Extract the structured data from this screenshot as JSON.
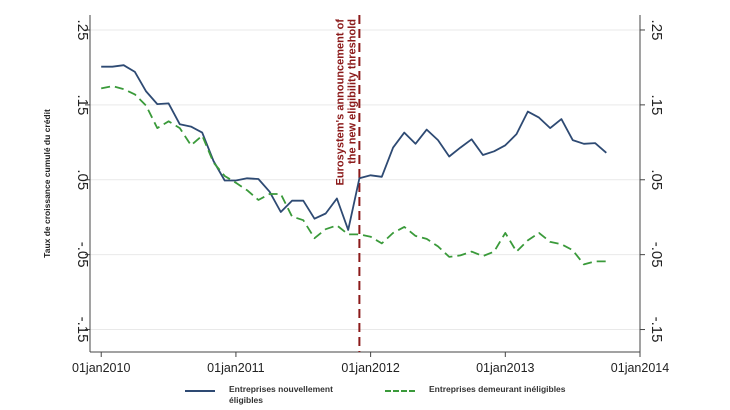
{
  "chart_data": {
    "type": "line",
    "ylabel": "Taux de croissance cumulé du crédit",
    "xlabel": "",
    "x_ticks": [
      "01jan2010",
      "01jan2011",
      "01jan2012",
      "01jan2013",
      "01jan2014"
    ],
    "y_ticks": [
      "-.15",
      "-.05",
      ".05",
      ".15",
      ".25"
    ],
    "ylim": [
      -0.18,
      0.27
    ],
    "xlim": [
      "2009-12",
      "2014-01"
    ],
    "grid": true,
    "legend_position": "bottom",
    "annotation": {
      "date": "2011-12",
      "lines": [
        "Eurosystem's announcement of",
        "the new eligibility threshold"
      ],
      "color": "#8b1a1a"
    },
    "series": [
      {
        "name": "Entreprises nouvellement éligibles",
        "color": "#2e4a73",
        "style": "solid",
        "points": [
          [
            "2010-01",
            0.201
          ],
          [
            "2010-02",
            0.201
          ],
          [
            "2010-03",
            0.203
          ],
          [
            "2010-04",
            0.194
          ],
          [
            "2010-05",
            0.168
          ],
          [
            "2010-06",
            0.151
          ],
          [
            "2010-07",
            0.152
          ],
          [
            "2010-08",
            0.124
          ],
          [
            "2010-09",
            0.121
          ],
          [
            "2010-10",
            0.113
          ],
          [
            "2010-11",
            0.075
          ],
          [
            "2010-12",
            0.049
          ],
          [
            "2011-01",
            0.049
          ],
          [
            "2011-02",
            0.052
          ],
          [
            "2011-03",
            0.051
          ],
          [
            "2011-04",
            0.034
          ],
          [
            "2011-05",
            0.007
          ],
          [
            "2011-06",
            0.022
          ],
          [
            "2011-07",
            0.022
          ],
          [
            "2011-08",
            -0.002
          ],
          [
            "2011-09",
            0.005
          ],
          [
            "2011-10",
            0.025
          ],
          [
            "2011-11",
            -0.017
          ],
          [
            "2011-12",
            0.052
          ],
          [
            "2012-01",
            0.056
          ],
          [
            "2012-02",
            0.054
          ],
          [
            "2012-03",
            0.093
          ],
          [
            "2012-04",
            0.113
          ],
          [
            "2012-05",
            0.098
          ],
          [
            "2012-06",
            0.117
          ],
          [
            "2012-07",
            0.103
          ],
          [
            "2012-08",
            0.081
          ],
          [
            "2012-09",
            0.093
          ],
          [
            "2012-10",
            0.104
          ],
          [
            "2012-11",
            0.083
          ],
          [
            "2012-12",
            0.088
          ],
          [
            "2013-01",
            0.096
          ],
          [
            "2013-02",
            0.111
          ],
          [
            "2013-03",
            0.141
          ],
          [
            "2013-04",
            0.133
          ],
          [
            "2013-05",
            0.119
          ],
          [
            "2013-06",
            0.131
          ],
          [
            "2013-07",
            0.103
          ],
          [
            "2013-08",
            0.098
          ],
          [
            "2013-09",
            0.099
          ],
          [
            "2013-10",
            0.086
          ]
        ]
      },
      {
        "name": "Entreprises demeurant inéligibles",
        "color": "#3a9a3a",
        "style": "dashed",
        "points": [
          [
            "2010-01",
            0.172
          ],
          [
            "2010-02",
            0.175
          ],
          [
            "2010-03",
            0.171
          ],
          [
            "2010-04",
            0.164
          ],
          [
            "2010-05",
            0.149
          ],
          [
            "2010-06",
            0.119
          ],
          [
            "2010-07",
            0.128
          ],
          [
            "2010-08",
            0.119
          ],
          [
            "2010-09",
            0.096
          ],
          [
            "2010-10",
            0.109
          ],
          [
            "2010-11",
            0.073
          ],
          [
            "2010-12",
            0.055
          ],
          [
            "2011-01",
            0.046
          ],
          [
            "2011-02",
            0.036
          ],
          [
            "2011-03",
            0.023
          ],
          [
            "2011-04",
            0.031
          ],
          [
            "2011-05",
            0.031
          ],
          [
            "2011-06",
            0.001
          ],
          [
            "2011-07",
            -0.004
          ],
          [
            "2011-08",
            -0.028
          ],
          [
            "2011-09",
            -0.016
          ],
          [
            "2011-10",
            -0.011
          ],
          [
            "2011-11",
            -0.023
          ],
          [
            "2011-12",
            -0.023
          ],
          [
            "2012-01",
            -0.026
          ],
          [
            "2012-02",
            -0.035
          ],
          [
            "2012-03",
            -0.021
          ],
          [
            "2012-04",
            -0.013
          ],
          [
            "2012-05",
            -0.025
          ],
          [
            "2012-06",
            -0.029
          ],
          [
            "2012-07",
            -0.039
          ],
          [
            "2012-08",
            -0.053
          ],
          [
            "2012-09",
            -0.051
          ],
          [
            "2012-10",
            -0.046
          ],
          [
            "2012-11",
            -0.052
          ],
          [
            "2012-12",
            -0.046
          ],
          [
            "2013-01",
            -0.021
          ],
          [
            "2013-02",
            -0.046
          ],
          [
            "2013-03",
            -0.031
          ],
          [
            "2013-04",
            -0.021
          ],
          [
            "2013-05",
            -0.033
          ],
          [
            "2013-06",
            -0.036
          ],
          [
            "2013-07",
            -0.044
          ],
          [
            "2013-08",
            -0.063
          ],
          [
            "2013-09",
            -0.059
          ],
          [
            "2013-10",
            -0.059
          ]
        ]
      }
    ]
  }
}
